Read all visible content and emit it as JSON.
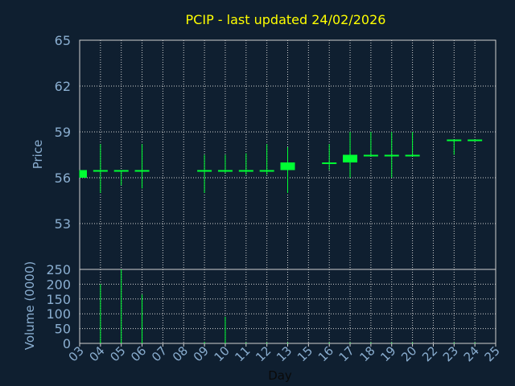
{
  "chart_data": {
    "type": "candlestick",
    "title": "PCIP - last updated 24/02/2026",
    "price_axis": {
      "label": "Price",
      "ylim": [
        50,
        65
      ],
      "ticks": [
        53,
        56,
        59,
        62,
        65
      ]
    },
    "volume_axis": {
      "label": "Volume (0000)",
      "ylim": [
        0,
        250
      ],
      "ticks": [
        0,
        50,
        100,
        150,
        200,
        250
      ]
    },
    "x_axis": {
      "label": "Day",
      "ticks": [
        "03",
        "04",
        "05",
        "06",
        "07",
        "08",
        "09",
        "10",
        "11",
        "12",
        "13",
        "15",
        "16",
        "17",
        "18",
        "19",
        "20",
        "22",
        "23",
        "24",
        "25"
      ]
    },
    "grid": true,
    "colors": {
      "background": "#0f1f30",
      "axis_text": "#8aaed0",
      "title": "#ffff00",
      "candle": "#00ff33",
      "grid": "#d0d0d0"
    },
    "candles": [
      {
        "day": "03",
        "open": 56.0,
        "high": 56.5,
        "low": 56.0,
        "close": 56.5
      },
      {
        "day": "04",
        "open": 56.5,
        "high": 58.2,
        "low": 55.0,
        "close": 56.5
      },
      {
        "day": "05",
        "open": 56.5,
        "high": 56.5,
        "low": 55.5,
        "close": 56.5
      },
      {
        "day": "06",
        "open": 56.5,
        "high": 58.2,
        "low": 55.3,
        "close": 56.5
      },
      {
        "day": "09",
        "open": 56.5,
        "high": 57.5,
        "low": 55.0,
        "close": 56.5
      },
      {
        "day": "10",
        "open": 56.5,
        "high": 57.5,
        "low": 56.3,
        "close": 56.5
      },
      {
        "day": "11",
        "open": 56.5,
        "high": 57.6,
        "low": 56.2,
        "close": 56.5
      },
      {
        "day": "12",
        "open": 56.5,
        "high": 58.2,
        "low": 56.2,
        "close": 56.5
      },
      {
        "day": "13",
        "open": 56.5,
        "high": 58.0,
        "low": 55.0,
        "close": 57.0
      },
      {
        "day": "16",
        "open": 57.0,
        "high": 58.2,
        "low": 56.5,
        "close": 57.0
      },
      {
        "day": "17",
        "open": 57.0,
        "high": 59.0,
        "low": 56.0,
        "close": 57.5
      },
      {
        "day": "18",
        "open": 57.5,
        "high": 59.0,
        "low": 57.5,
        "close": 57.5
      },
      {
        "day": "19",
        "open": 57.5,
        "high": 59.0,
        "low": 56.0,
        "close": 57.5
      },
      {
        "day": "20",
        "open": 57.5,
        "high": 59.0,
        "low": 57.5,
        "close": 57.5
      },
      {
        "day": "23",
        "open": 58.5,
        "high": 58.5,
        "low": 57.5,
        "close": 58.5
      },
      {
        "day": "24",
        "open": 58.5,
        "high": 58.5,
        "low": 58.5,
        "close": 58.5
      }
    ],
    "volume": [
      {
        "day": "04",
        "value": 200
      },
      {
        "day": "05",
        "value": 250
      },
      {
        "day": "06",
        "value": 165
      },
      {
        "day": "09",
        "value": 5
      },
      {
        "day": "10",
        "value": 90
      },
      {
        "day": "11",
        "value": 3
      },
      {
        "day": "12",
        "value": 3
      },
      {
        "day": "13",
        "value": 3
      },
      {
        "day": "16",
        "value": 3
      },
      {
        "day": "17",
        "value": 3
      },
      {
        "day": "18",
        "value": 3
      },
      {
        "day": "19",
        "value": 3
      },
      {
        "day": "20",
        "value": 3
      },
      {
        "day": "23",
        "value": 3
      },
      {
        "day": "24",
        "value": 3
      }
    ]
  }
}
